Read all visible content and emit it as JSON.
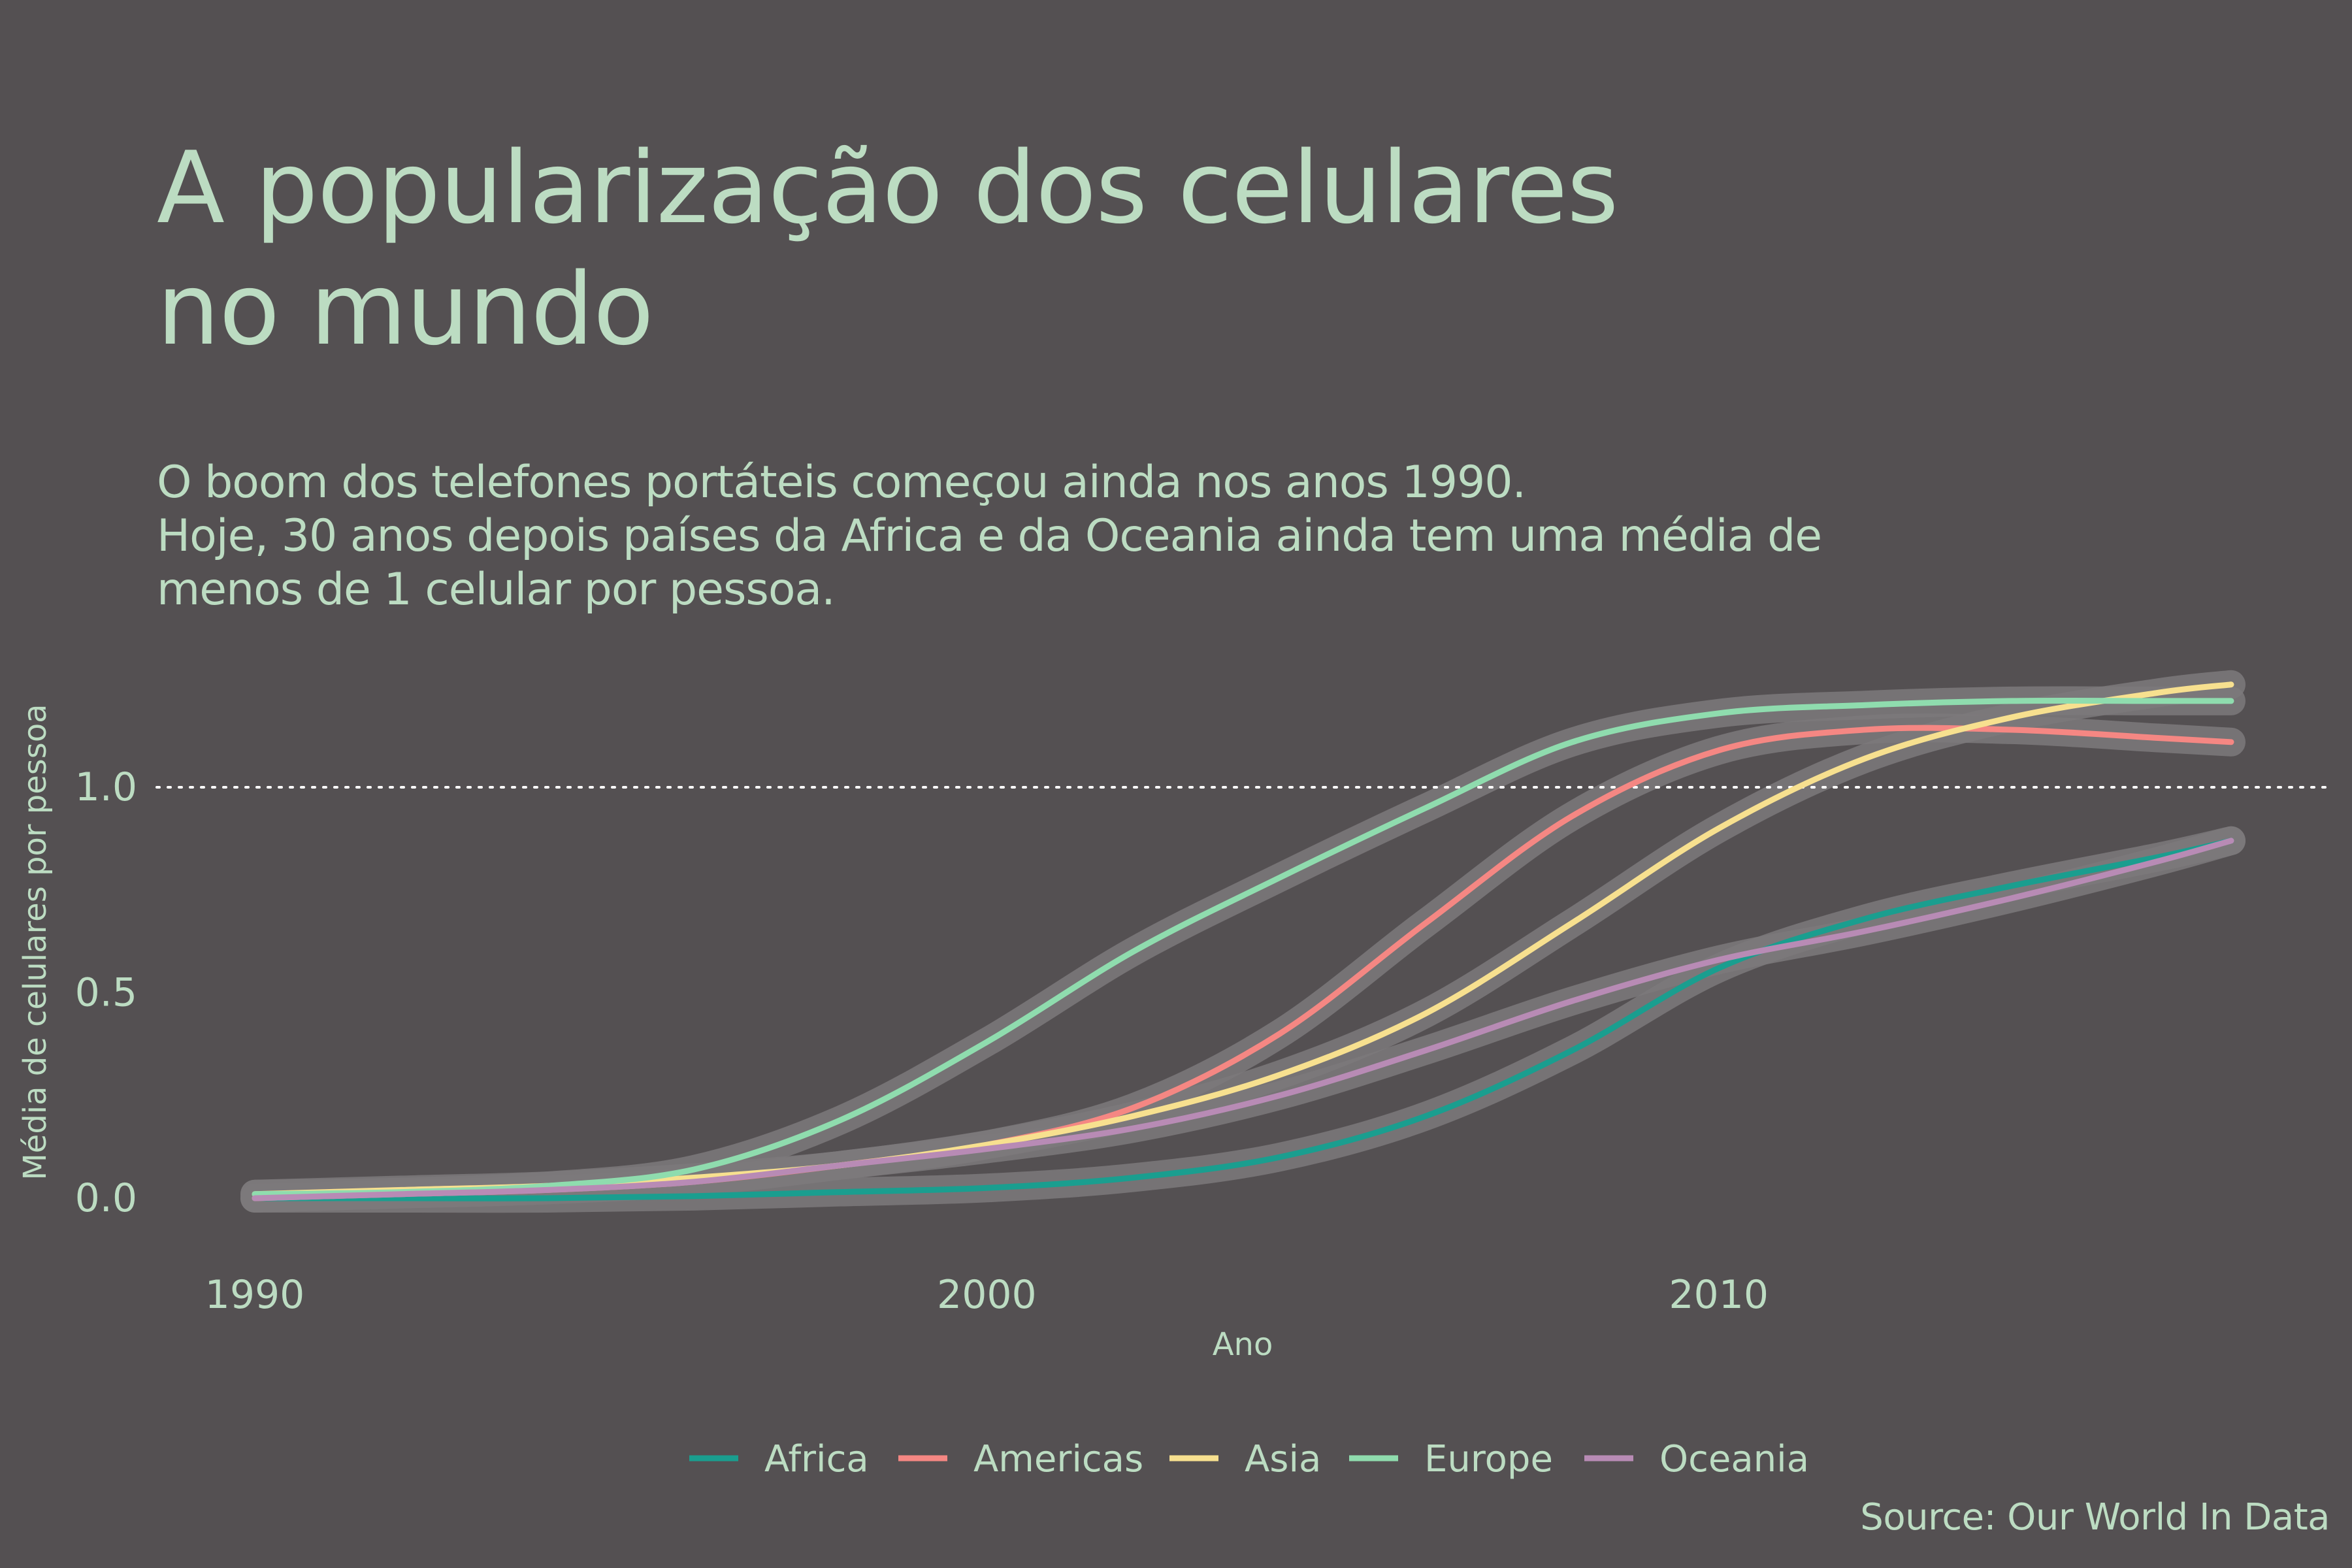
{
  "header": {
    "title": "A popularização dos celulares\nno mundo",
    "subtitle": "O boom dos telefones portáteis começou ainda nos anos 1990.\nHoje, 30 anos depois países da Africa e da Oceania ainda tem uma média de\nmenos de 1 celular por pessoa."
  },
  "footer": {
    "source": "Source: Our World In Data"
  },
  "chart_data": {
    "type": "line",
    "title": "A popularização dos celulares no mundo",
    "xlabel": "Ano",
    "ylabel": "Média de celulares por pessoa",
    "xlim": [
      1990,
      2017
    ],
    "ylim": [
      -0.08,
      1.35
    ],
    "x_ticks": [
      1990,
      2000,
      2010
    ],
    "y_ticks": [
      0.0,
      0.5,
      1.0
    ],
    "y_tick_labels": [
      "0.0",
      "0.5",
      "1.0"
    ],
    "reference_line": {
      "y": 1.0,
      "style": "dotted",
      "color": "#ffffff"
    },
    "confidence_band_color": "#7d797b",
    "grid": false,
    "legend_position": "bottom",
    "x": [
      1990,
      1992,
      1994,
      1996,
      1998,
      2000,
      2002,
      2004,
      2006,
      2008,
      2010,
      2012,
      2014,
      2016,
      2017
    ],
    "series": [
      {
        "name": "Africa",
        "color": "#1a9e8f",
        "values": [
          0.0,
          0.0,
          0.0,
          0.005,
          0.015,
          0.025,
          0.05,
          0.1,
          0.2,
          0.36,
          0.56,
          0.68,
          0.76,
          0.83,
          0.87
        ]
      },
      {
        "name": "Americas",
        "color": "#f58783",
        "values": [
          0.0,
          0.01,
          0.02,
          0.04,
          0.08,
          0.13,
          0.22,
          0.4,
          0.67,
          0.93,
          1.09,
          1.14,
          1.14,
          1.12,
          1.11
        ]
      },
      {
        "name": "Asia",
        "color": "#f7e08f",
        "values": [
          0.01,
          0.02,
          0.03,
          0.05,
          0.08,
          0.13,
          0.2,
          0.3,
          0.45,
          0.67,
          0.9,
          1.07,
          1.17,
          1.23,
          1.25
        ]
      },
      {
        "name": "Europe",
        "color": "#8fdcae",
        "values": [
          0.01,
          0.015,
          0.03,
          0.07,
          0.19,
          0.38,
          0.6,
          0.78,
          0.95,
          1.11,
          1.18,
          1.2,
          1.21,
          1.21,
          1.21
        ]
      },
      {
        "name": "Oceania",
        "color": "#b88bb5",
        "values": [
          0.0,
          0.01,
          0.02,
          0.04,
          0.08,
          0.12,
          0.17,
          0.25,
          0.36,
          0.48,
          0.58,
          0.65,
          0.73,
          0.82,
          0.87
        ]
      }
    ]
  }
}
